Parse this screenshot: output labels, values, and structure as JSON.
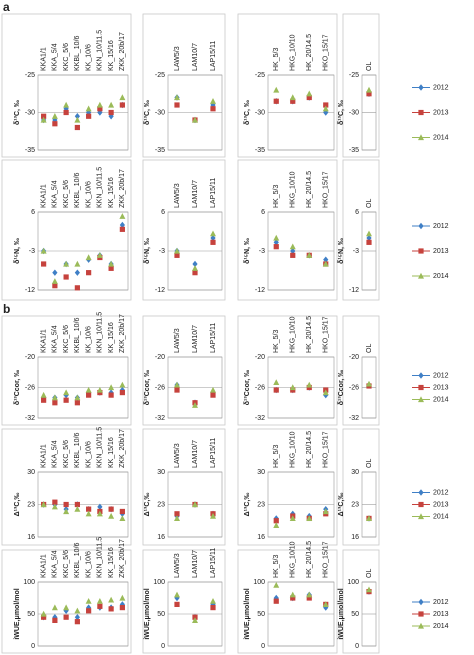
{
  "chart_data": [
    {
      "type": "dot",
      "panel_label": "a",
      "ylabel": "δ¹³C, ‰",
      "ylim": [
        -35,
        -25
      ],
      "yticks": [
        -35,
        -30,
        -25
      ],
      "series": [
        {
          "name": "2012",
          "color": "#3f7fc6",
          "marker": "diamond"
        },
        {
          "name": "2013",
          "color": "#c6423d",
          "marker": "square"
        },
        {
          "name": "2014",
          "color": "#9bbb59",
          "marker": "triangle"
        }
      ],
      "panels": [
        {
          "categories": [
            "KKA1/1",
            "KKA_5/4",
            "KKC_5/6",
            "KKBL_10/6",
            "KK_10/6",
            "KKN_10/11.5",
            "KK_15/16",
            "ZKK_20b/17"
          ],
          "values": [
            [
              -31,
              -31,
              -29.5,
              -30.5,
              -30,
              -30,
              -30.5,
              -29
            ],
            [
              -30.5,
              -31.5,
              -30,
              -32,
              -30.5,
              -29.5,
              -30,
              -29
            ],
            [
              -31,
              -30.5,
              -29,
              -31,
              -29.5,
              -29,
              -29,
              -28
            ]
          ]
        },
        {
          "categories": [
            "LAW5/3",
            "LAM10/7",
            "LAP15/11"
          ],
          "values": [
            [
              -28,
              -31,
              -29
            ],
            [
              -29,
              -31,
              -29.5
            ],
            [
              -28,
              -31,
              -28.5
            ]
          ]
        },
        {
          "categories": [
            "HK_5/3",
            "HKG_10/10",
            "HK_20/14.5",
            "HKO_15/17"
          ],
          "values": [
            [
              -28.5,
              -28.5,
              -28,
              -30
            ],
            [
              -28.5,
              -28.5,
              -28,
              -29
            ],
            [
              -27,
              -28,
              -27.5,
              -29.5
            ]
          ]
        },
        {
          "categories": [
            "OL"
          ],
          "values": [
            [
              -27.5
            ],
            [
              -27.5
            ],
            [
              -27
            ]
          ]
        }
      ]
    },
    {
      "type": "dot",
      "ylabel": "δ¹⁵N, ‰",
      "ylim": [
        -12,
        6
      ],
      "yticks": [
        -12,
        -3,
        6
      ],
      "series": [
        {
          "name": "2012",
          "color": "#3f7fc6",
          "marker": "diamond"
        },
        {
          "name": "2013",
          "color": "#c6423d",
          "marker": "square"
        },
        {
          "name": "2014",
          "color": "#9bbb59",
          "marker": "triangle"
        }
      ],
      "panels": [
        {
          "categories": [
            "KKA1/1",
            "KKA_5/4",
            "KKC_5/6",
            "KKBL_10/6",
            "KK_10/6",
            "KKN_10/11.5",
            "KK_15/16",
            "ZKK_20b/17"
          ],
          "values": [
            [
              -3,
              -8,
              -6,
              -8,
              -5,
              -4,
              -6,
              3
            ],
            [
              -6,
              -11,
              -9,
              -11.5,
              -8,
              -4.5,
              -7,
              2
            ],
            [
              -3,
              -10,
              -6,
              -6,
              -4.5,
              -4,
              -6,
              5
            ]
          ]
        },
        {
          "categories": [
            "LAW5/3",
            "LAM10/7",
            "LAP15/11"
          ],
          "values": [
            [
              -3,
              -6,
              0
            ],
            [
              -4,
              -8,
              -1
            ],
            [
              -3,
              -7,
              1
            ]
          ]
        },
        {
          "categories": [
            "HK_5/3",
            "HKG_10/10",
            "HK_20/14.5",
            "HKO_15/17"
          ],
          "values": [
            [
              -1,
              -3,
              -4,
              -5
            ],
            [
              -2,
              -4,
              -4,
              -6
            ],
            [
              0,
              -2,
              -4,
              -6
            ]
          ]
        },
        {
          "categories": [
            "OL"
          ],
          "values": [
            [
              0
            ],
            [
              -1
            ],
            [
              1
            ]
          ]
        }
      ]
    },
    {
      "type": "dot",
      "panel_label": "b",
      "ylabel": "δ¹³Ccor, ‰",
      "ylim": [
        -32,
        -20
      ],
      "yticks": [
        -32,
        -26,
        -20
      ],
      "series": [
        {
          "name": "2012",
          "color": "#3f7fc6",
          "marker": "diamond"
        },
        {
          "name": "2013",
          "color": "#c6423d",
          "marker": "square"
        },
        {
          "name": "2014",
          "color": "#9bbb59",
          "marker": "triangle"
        }
      ],
      "panels": [
        {
          "categories": [
            "KKA1/1",
            "KKA_5/4",
            "KKC_5/6",
            "KKBL_10/6",
            "KK_10/6",
            "KKN_10/11.5",
            "KK_15/16",
            "ZKK_20b/17"
          ],
          "values": [
            [
              -28,
              -28,
              -27.5,
              -28,
              -27,
              -27,
              -27,
              -26.5
            ],
            [
              -28.5,
              -29,
              -28.5,
              -29,
              -27.5,
              -27,
              -27.5,
              -27
            ],
            [
              -27.5,
              -28,
              -27,
              -28,
              -26.5,
              -26.5,
              -26,
              -25.5
            ]
          ]
        },
        {
          "categories": [
            "LAW5/3",
            "LAM10/7",
            "LAP15/11"
          ],
          "values": [
            [
              -25.5,
              -29,
              -27
            ],
            [
              -26.5,
              -29,
              -27.5
            ],
            [
              -25.5,
              -29.5,
              -26.5
            ]
          ]
        },
        {
          "categories": [
            "HK_5/3",
            "HKG_10/10",
            "HK_20/14.5",
            "HKO_15/17"
          ],
          "values": [
            [
              -26.5,
              -26.5,
              -26,
              -27.5
            ],
            [
              -26.5,
              -26.5,
              -26,
              -26.5
            ],
            [
              -25,
              -26,
              -25.5,
              -27
            ]
          ]
        },
        {
          "categories": [
            "OL"
          ],
          "values": [
            [
              -25.5
            ],
            [
              -25.7
            ],
            [
              -25.3
            ]
          ]
        }
      ]
    },
    {
      "type": "dot",
      "ylabel": "Δ¹³C,‰",
      "ylim": [
        16,
        30
      ],
      "yticks": [
        16,
        23,
        30
      ],
      "series": [
        {
          "name": "2012",
          "color": "#3f7fc6",
          "marker": "diamond"
        },
        {
          "name": "2013",
          "color": "#c6423d",
          "marker": "square"
        },
        {
          "name": "2014",
          "color": "#9bbb59",
          "marker": "triangle"
        }
      ],
      "panels": [
        {
          "categories": [
            "KKA1/1",
            "KKA_5/4",
            "KKC_5/6",
            "KKBL_10/6",
            "KK_10/6",
            "KKN_10/11.5",
            "KK_15/16",
            "ZKK_20b/17"
          ],
          "values": [
            [
              23,
              23,
              22,
              23,
              22,
              22.5,
              22,
              21
            ],
            [
              23,
              23.5,
              23,
              23,
              22,
              21.5,
              22,
              21.5
            ],
            [
              23,
              22.5,
              21.5,
              22,
              21,
              21,
              20.5,
              20
            ]
          ]
        },
        {
          "categories": [
            "LAW5/3",
            "LAM10/7",
            "LAP15/11"
          ],
          "values": [
            [
              20.5,
              23,
              21
            ],
            [
              21,
              23,
              21
            ],
            [
              20,
              23,
              20.5
            ]
          ]
        },
        {
          "categories": [
            "HK_5/3",
            "HKG_10/10",
            "HK_20/14.5",
            "HKO_15/17"
          ],
          "values": [
            [
              20,
              21,
              20.5,
              22
            ],
            [
              19.5,
              20.5,
              20,
              21
            ],
            [
              18.5,
              20,
              20,
              21.5
            ]
          ]
        },
        {
          "categories": [
            "OL"
          ],
          "values": [
            [
              20
            ],
            [
              20
            ],
            [
              20
            ]
          ]
        }
      ]
    },
    {
      "type": "dot",
      "ylabel": "iWUE,μmol/mol",
      "ylim": [
        0,
        100
      ],
      "yticks": [
        0,
        50,
        100
      ],
      "series": [
        {
          "name": "2012",
          "color": "#3f7fc6",
          "marker": "diamond"
        },
        {
          "name": "2013",
          "color": "#c6423d",
          "marker": "square"
        },
        {
          "name": "2014",
          "color": "#9bbb59",
          "marker": "triangle"
        }
      ],
      "panels": [
        {
          "categories": [
            "KKA1/1",
            "KKA_5/4",
            "KKC_5/6",
            "KKBL_10/6",
            "KK_10/6",
            "KKN_10/11.5",
            "KK_15/16",
            "ZKK_20b/17"
          ],
          "values": [
            [
              45,
              45,
              55,
              45,
              60,
              60,
              60,
              65
            ],
            [
              45,
              40,
              45,
              38,
              55,
              62,
              58,
              60
            ],
            [
              50,
              60,
              60,
              55,
              70,
              70,
              72,
              75
            ]
          ]
        },
        {
          "categories": [
            "LAW5/3",
            "LAM10/7",
            "LAP15/11"
          ],
          "values": [
            [
              75,
              45,
              65
            ],
            [
              65,
              45,
              60
            ],
            [
              80,
              40,
              70
            ]
          ]
        },
        {
          "categories": [
            "HK_5/3",
            "HKG_10/10",
            "HK_20/14.5",
            "HKO_15/17"
          ],
          "values": [
            [
              75,
              75,
              80,
              60
            ],
            [
              70,
              75,
              75,
              65
            ],
            [
              95,
              80,
              80,
              65
            ]
          ]
        },
        {
          "categories": [
            "OL"
          ],
          "values": [
            [
              85
            ],
            [
              85
            ],
            [
              88
            ]
          ]
        }
      ]
    }
  ]
}
